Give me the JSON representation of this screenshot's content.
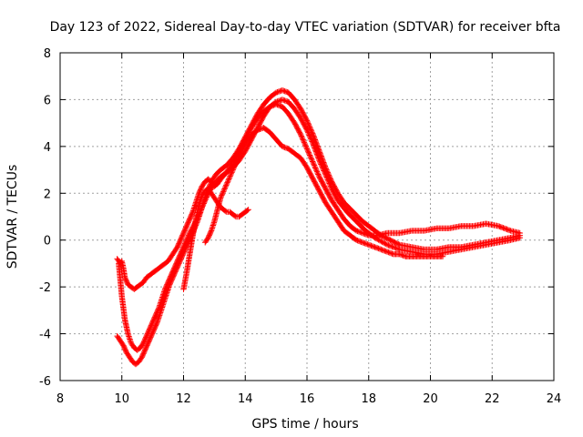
{
  "chart_data": {
    "type": "scatter",
    "title": "Day 123 of 2022, Sidereal Day-to-day VTEC variation (SDTVAR) for receiver bfta",
    "xlabel": "GPS time / hours",
    "ylabel": "SDTVAR / TECUs",
    "xlim": [
      8,
      24
    ],
    "ylim": [
      -6,
      8
    ],
    "xticks": [
      8,
      10,
      12,
      14,
      16,
      18,
      20,
      22,
      24
    ],
    "yticks": [
      -6,
      -4,
      -2,
      0,
      2,
      4,
      6,
      8
    ],
    "xtick_labels": [
      "8",
      "10",
      "12",
      "14",
      "16",
      "18",
      "20",
      "22",
      "24"
    ],
    "ytick_labels": [
      "-6",
      "-4",
      "-2",
      "0",
      "2",
      "4",
      "6",
      "8"
    ],
    "grid": true,
    "marker": "+",
    "color": "#ff0000",
    "series": [
      {
        "name": "track-1",
        "x": [
          9.85,
          9.9,
          9.95,
          10.0,
          10.05,
          10.1,
          10.2,
          10.3,
          10.4,
          10.5,
          10.6,
          10.7,
          10.8,
          10.9,
          11.0,
          11.1,
          11.2,
          11.3,
          11.4,
          11.5,
          11.6,
          11.7,
          11.8,
          11.9,
          12.0,
          12.1,
          12.2,
          12.3,
          12.4,
          12.5,
          12.6,
          12.7,
          12.8,
          12.9,
          13.0,
          13.1,
          13.2,
          13.4,
          13.6,
          13.8,
          14.0,
          14.2,
          14.4,
          14.6,
          14.8,
          15.0,
          15.2,
          15.4,
          15.6,
          15.8,
          16.0,
          16.2,
          16.4,
          16.6,
          16.8,
          17.0,
          17.2,
          17.4,
          17.6,
          17.8,
          18.0,
          18.3,
          18.6,
          19.0,
          19.4,
          19.8,
          20.2,
          20.6,
          21.0,
          21.4,
          21.8,
          22.2,
          22.6,
          22.9
        ],
        "y": [
          -0.8,
          -0.9,
          -1.0,
          -0.9,
          -1.2,
          -1.6,
          -1.9,
          -2.0,
          -2.1,
          -2.0,
          -1.9,
          -1.8,
          -1.6,
          -1.5,
          -1.4,
          -1.3,
          -1.2,
          -1.1,
          -1.0,
          -0.9,
          -0.7,
          -0.5,
          -0.3,
          0.0,
          0.3,
          0.6,
          0.9,
          1.2,
          1.6,
          2.0,
          2.3,
          2.5,
          2.6,
          2.5,
          2.3,
          2.4,
          2.6,
          2.9,
          3.3,
          3.8,
          4.3,
          4.8,
          5.2,
          5.5,
          5.7,
          5.8,
          5.7,
          5.4,
          5.0,
          4.5,
          3.9,
          3.3,
          2.7,
          2.2,
          1.7,
          1.3,
          0.9,
          0.6,
          0.4,
          0.3,
          0.2,
          0.2,
          0.3,
          0.3,
          0.4,
          0.4,
          0.5,
          0.5,
          0.6,
          0.6,
          0.7,
          0.6,
          0.4,
          0.3
        ]
      },
      {
        "name": "track-2",
        "x": [
          9.85,
          9.95,
          10.05,
          10.15,
          10.25,
          10.35,
          10.45,
          10.55,
          10.65,
          10.75,
          10.85,
          10.95,
          11.05,
          11.15,
          11.25,
          11.35,
          11.45,
          11.55,
          11.65,
          11.75,
          11.85,
          11.95,
          12.05,
          12.15,
          12.3,
          12.45,
          12.6,
          12.75,
          12.9,
          13.05,
          13.2,
          13.4,
          13.6,
          13.8,
          14.0,
          14.2,
          14.4,
          14.6,
          14.8,
          15.0,
          15.2,
          15.4,
          15.6,
          15.8,
          16.0,
          16.2,
          16.4,
          16.6,
          16.8,
          17.0,
          17.2,
          17.5,
          17.8,
          18.1,
          18.4,
          18.7,
          19.0,
          19.4,
          19.8,
          20.2,
          20.6,
          21.0,
          21.4,
          21.8,
          22.2,
          22.6,
          22.9
        ],
        "y": [
          -4.1,
          -4.3,
          -4.5,
          -4.8,
          -5.0,
          -5.2,
          -5.3,
          -5.2,
          -5.0,
          -4.7,
          -4.4,
          -4.1,
          -3.8,
          -3.5,
          -3.1,
          -2.7,
          -2.3,
          -1.9,
          -1.6,
          -1.3,
          -1.0,
          -0.7,
          -0.4,
          -0.1,
          0.3,
          0.8,
          1.4,
          2.0,
          2.5,
          2.8,
          3.0,
          3.2,
          3.5,
          3.9,
          4.4,
          4.9,
          5.4,
          5.8,
          6.1,
          6.3,
          6.4,
          6.3,
          6.0,
          5.6,
          5.1,
          4.5,
          3.8,
          3.1,
          2.5,
          2.0,
          1.6,
          1.2,
          0.8,
          0.5,
          0.2,
          0.0,
          -0.2,
          -0.3,
          -0.4,
          -0.4,
          -0.3,
          -0.3,
          -0.2,
          -0.1,
          0.0,
          0.1,
          0.2
        ]
      },
      {
        "name": "track-3",
        "x": [
          9.9,
          10.0,
          10.1,
          10.2,
          10.3,
          10.4,
          10.5,
          10.6,
          10.7,
          10.8,
          10.9,
          11.0,
          11.1,
          11.2,
          11.3,
          11.4,
          11.5,
          11.6,
          11.7,
          11.8,
          11.9,
          12.0,
          12.1,
          12.2,
          12.4,
          12.6,
          12.8,
          13.0,
          13.2,
          13.4,
          13.6,
          13.8,
          14.0,
          14.2,
          14.4,
          14.6,
          14.8,
          15.0,
          15.2,
          15.4,
          15.6,
          15.8,
          16.0,
          16.2,
          16.4,
          16.6,
          16.8,
          17.0,
          17.3,
          17.6,
          17.9,
          18.2,
          18.6,
          19.0,
          19.4,
          19.8,
          20.2,
          20.6,
          21.0,
          21.4,
          21.8,
          22.2,
          22.6,
          22.9
        ],
        "y": [
          -1.0,
          -2.4,
          -3.4,
          -4.0,
          -4.4,
          -4.6,
          -4.7,
          -4.6,
          -4.4,
          -4.1,
          -3.8,
          -3.5,
          -3.2,
          -2.9,
          -2.5,
          -2.1,
          -1.8,
          -1.5,
          -1.2,
          -0.9,
          -0.6,
          -0.3,
          0.0,
          0.3,
          0.8,
          1.4,
          2.0,
          2.4,
          2.7,
          2.9,
          3.1,
          3.4,
          3.8,
          4.3,
          4.8,
          5.3,
          5.7,
          5.9,
          6.0,
          5.9,
          5.6,
          5.2,
          4.7,
          4.1,
          3.4,
          2.8,
          2.2,
          1.7,
          1.2,
          0.8,
          0.4,
          0.1,
          -0.2,
          -0.4,
          -0.5,
          -0.6,
          -0.6,
          -0.5,
          -0.4,
          -0.3,
          -0.2,
          -0.1,
          0.0,
          0.1
        ]
      },
      {
        "name": "track-4",
        "x": [
          12.0,
          12.1,
          12.2,
          12.3,
          12.4,
          12.5,
          12.6,
          12.7,
          12.8,
          12.9,
          13.0,
          13.1,
          13.2,
          13.3,
          13.4,
          13.5,
          13.6,
          13.7,
          13.8,
          13.9,
          14.0,
          14.1
        ],
        "y": [
          -2.1,
          -1.4,
          -0.6,
          0.2,
          0.9,
          1.5,
          1.9,
          2.1,
          2.2,
          2.0,
          1.8,
          1.6,
          1.4,
          1.3,
          1.2,
          1.2,
          1.1,
          1.0,
          1.0,
          1.1,
          1.2,
          1.3
        ]
      },
      {
        "name": "track-5",
        "x": [
          12.7,
          12.8,
          12.9,
          13.0,
          13.1,
          13.2,
          13.4,
          13.6,
          13.8,
          14.0,
          14.2,
          14.4,
          14.6,
          14.8,
          15.0,
          15.2,
          15.4,
          15.6,
          15.8,
          16.0,
          16.2,
          16.4,
          16.6,
          16.8,
          17.0,
          17.2,
          17.4,
          17.6,
          17.8,
          18.0,
          18.2,
          18.4,
          18.6,
          18.8,
          19.0,
          19.2,
          19.4,
          19.6,
          19.8,
          20.0,
          20.2,
          20.4
        ],
        "y": [
          -0.1,
          0.1,
          0.4,
          0.8,
          1.3,
          1.8,
          2.4,
          3.0,
          3.6,
          4.1,
          4.5,
          4.7,
          4.8,
          4.6,
          4.3,
          4.0,
          3.9,
          3.7,
          3.5,
          3.1,
          2.6,
          2.1,
          1.6,
          1.2,
          0.8,
          0.4,
          0.2,
          0.0,
          -0.1,
          -0.2,
          -0.3,
          -0.4,
          -0.5,
          -0.6,
          -0.6,
          -0.7,
          -0.7,
          -0.7,
          -0.7,
          -0.7,
          -0.7,
          -0.7
        ]
      }
    ]
  }
}
